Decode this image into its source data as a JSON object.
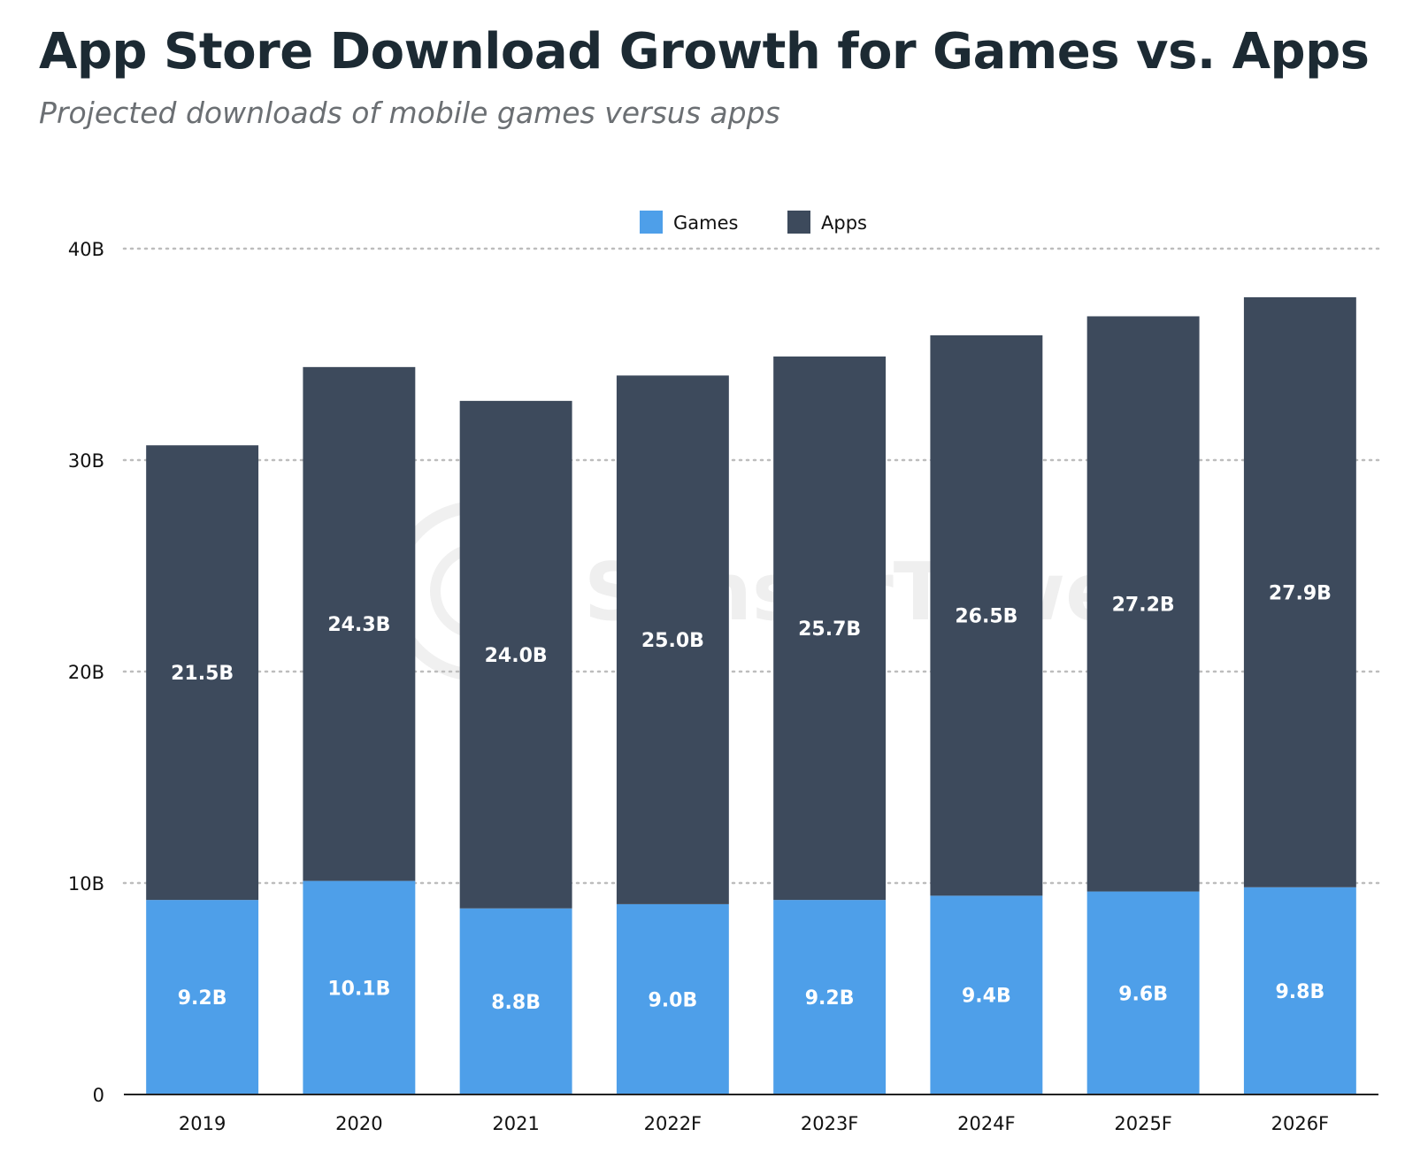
{
  "title": "App Store Download Growth for Games vs. Apps",
  "subtitle": "Projected downloads of mobile games versus apps",
  "watermark": "SensorTower",
  "colors": {
    "games": "#4e9fe9",
    "apps": "#3d4a5c",
    "grid": "#bdbdbd",
    "axis": "#222222"
  },
  "chart_data": {
    "type": "bar",
    "stacked": true,
    "categories": [
      "2019",
      "2020",
      "2021",
      "2022F",
      "2023F",
      "2024F",
      "2025F",
      "2026F"
    ],
    "series": [
      {
        "name": "Games",
        "values": [
          9.2,
          10.1,
          8.8,
          9.0,
          9.2,
          9.4,
          9.6,
          9.8
        ],
        "labels": [
          "9.2B",
          "10.1B",
          "8.8B",
          "9.0B",
          "9.2B",
          "9.4B",
          "9.6B",
          "9.8B"
        ]
      },
      {
        "name": "Apps",
        "values": [
          21.5,
          24.3,
          24.0,
          25.0,
          25.7,
          26.5,
          27.2,
          27.9
        ],
        "labels": [
          "21.5B",
          "24.3B",
          "24.0B",
          "25.0B",
          "25.7B",
          "26.5B",
          "27.2B",
          "27.9B"
        ]
      }
    ],
    "yticks": [
      0,
      10,
      20,
      30,
      40
    ],
    "ytick_labels": [
      "0",
      "10B",
      "20B",
      "30B",
      "40B"
    ],
    "ylim": [
      0,
      40
    ],
    "grid": true,
    "legend_position": "top-center",
    "xlabel": "",
    "ylabel": ""
  }
}
